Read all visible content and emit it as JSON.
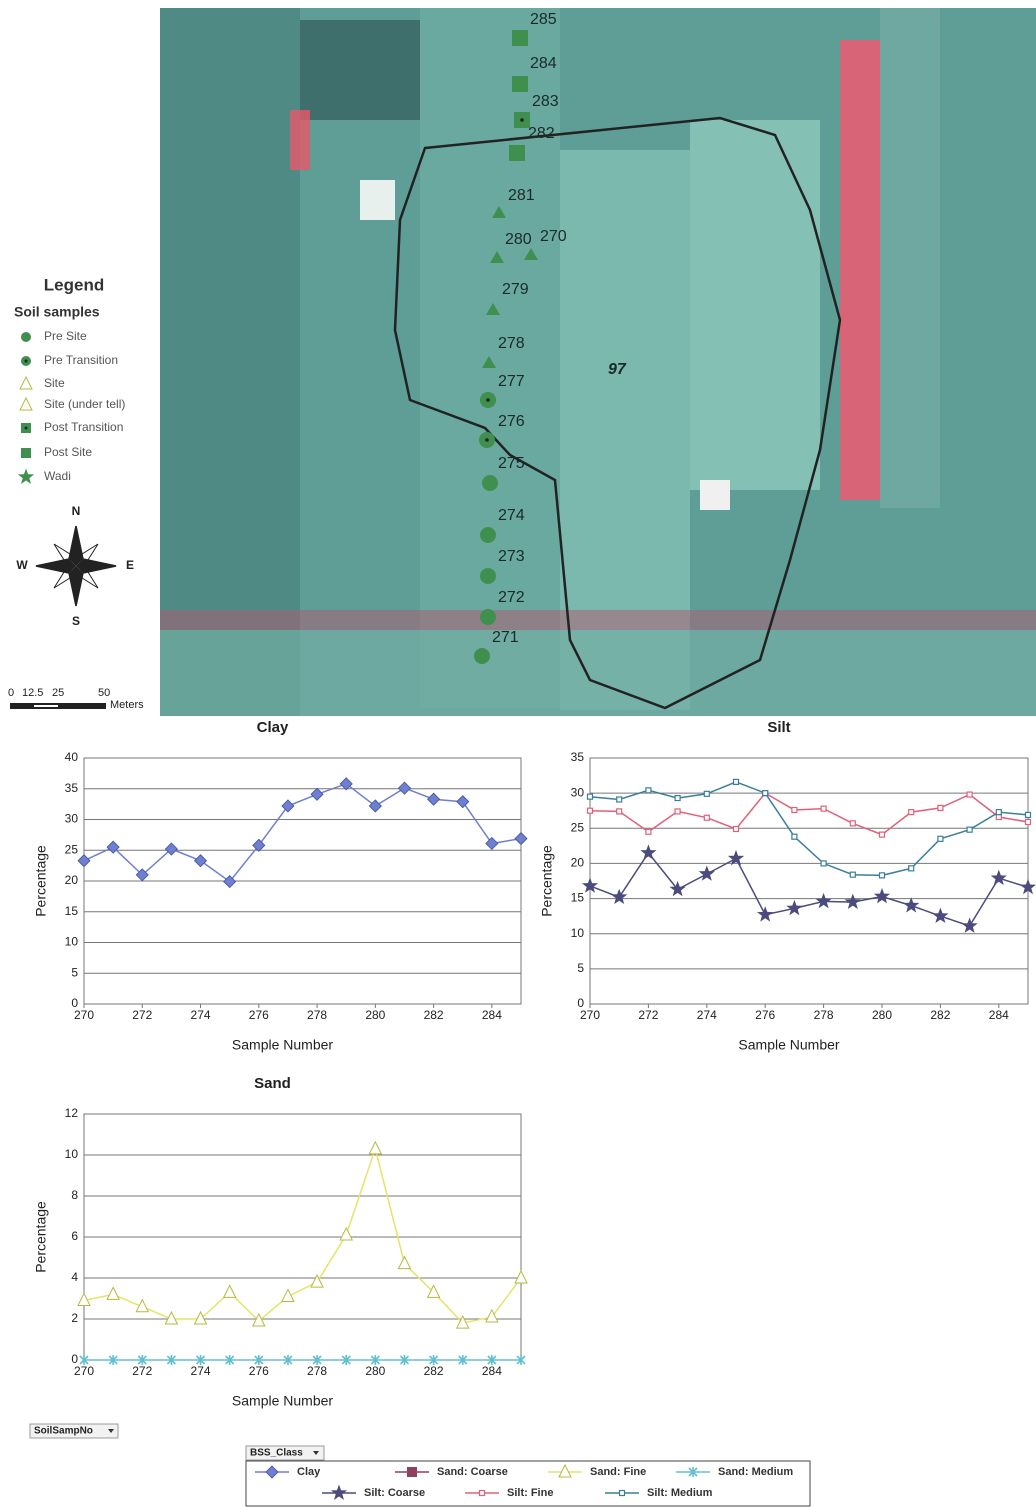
{
  "map": {
    "legend_title": "Legend",
    "legend_subtitle": "Soil samples",
    "classes": [
      {
        "name": "Pre Site",
        "marker": "circle",
        "color": "#3f8f4f"
      },
      {
        "name": "Pre Transition",
        "marker": "circle-dot",
        "color": "#3f8f4f"
      },
      {
        "name": "Site",
        "marker": "triangle",
        "color": "#3f8f4f"
      },
      {
        "name": "Site (under tell)",
        "marker": "triangle",
        "color": "#2f6f3f"
      },
      {
        "name": "Post Transition",
        "marker": "square-dot",
        "color": "#3f8f4f"
      },
      {
        "name": "Post Site",
        "marker": "square",
        "color": "#3f8f4f"
      },
      {
        "name": "Wadi",
        "marker": "star",
        "color": "#3f8f4f"
      }
    ],
    "samples": [
      "285",
      "284",
      "283",
      "282",
      "281",
      "280",
      "270",
      "279",
      "278",
      "277",
      "276",
      "275",
      "274",
      "273",
      "272",
      "271"
    ],
    "area_label": "97",
    "compass": {
      "n": "N",
      "s": "S",
      "e": "E",
      "w": "W"
    },
    "scale": {
      "ticks": [
        "0",
        "12.5",
        "25",
        "50"
      ],
      "unit": "Meters"
    }
  },
  "chart_data": [
    {
      "type": "line",
      "title": "Clay",
      "x_label": "Sample Number",
      "y_label": "Percentage",
      "x": [
        270,
        271,
        272,
        273,
        274,
        275,
        276,
        277,
        278,
        279,
        280,
        281,
        282,
        283,
        284,
        285
      ],
      "xlim": [
        270,
        285
      ],
      "xticks": [
        270,
        272,
        274,
        276,
        278,
        280,
        282,
        284
      ],
      "ylim": [
        0,
        40
      ],
      "yticks": [
        0,
        5,
        10,
        15,
        20,
        25,
        30,
        35,
        40
      ],
      "grid": true,
      "series": [
        {
          "color": "#6f7fd0",
          "marker": "diamond",
          "values": [
            23.3,
            25.5,
            21,
            25.2,
            23.3,
            19.9,
            25.8,
            32.2,
            34.1,
            35.8,
            32.2,
            35.1,
            33.3,
            32.9,
            26.1,
            26.9
          ]
        }
      ]
    },
    {
      "type": "line",
      "title": "Silt",
      "x_label": "Sample Number",
      "y_label": "Percentage",
      "x": [
        270,
        271,
        272,
        273,
        274,
        275,
        276,
        277,
        278,
        279,
        280,
        281,
        282,
        283,
        284,
        285
      ],
      "xlim": [
        270,
        285
      ],
      "xticks": [
        270,
        272,
        274,
        276,
        278,
        280,
        282,
        284
      ],
      "ylim": [
        0,
        35
      ],
      "yticks": [
        0,
        5,
        10,
        15,
        20,
        25,
        30,
        35
      ],
      "grid": true,
      "series": [
        {
          "color": "#4b4b7d",
          "marker": "star",
          "values": [
            16.8,
            15.2,
            21.5,
            16.3,
            18.5,
            20.7,
            12.7,
            13.6,
            14.6,
            14.5,
            15.3,
            14,
            12.5,
            11.1,
            17.9,
            16.6
          ]
        },
        {
          "color": "#e0607a",
          "marker": "small-square",
          "values": [
            27.5,
            27.4,
            24.5,
            27.4,
            26.5,
            24.9,
            30,
            27.6,
            27.8,
            25.7,
            24.1,
            27.3,
            27.9,
            29.8,
            26.6,
            25.9
          ]
        },
        {
          "color": "#3a7f9a",
          "marker": "small-square",
          "values": [
            29.5,
            29.1,
            30.4,
            29.3,
            29.9,
            31.6,
            30,
            23.8,
            20,
            18.4,
            18.3,
            19.3,
            23.5,
            24.8,
            27.3,
            26.9
          ]
        }
      ]
    },
    {
      "type": "line",
      "title": "Sand",
      "x_label": "Sample Number",
      "y_label": "Percentage",
      "x": [
        270,
        271,
        272,
        273,
        274,
        275,
        276,
        277,
        278,
        279,
        280,
        281,
        282,
        283,
        284,
        285
      ],
      "xlim": [
        270,
        285
      ],
      "xticks": [
        270,
        272,
        274,
        276,
        278,
        280,
        282,
        284
      ],
      "ylim": [
        0,
        12
      ],
      "yticks": [
        0,
        2,
        4,
        6,
        8,
        10,
        12
      ],
      "grid": true,
      "series": [
        {
          "color": "#e4e46a",
          "marker": "triangle",
          "values": [
            2.9,
            3.2,
            2.6,
            2,
            2,
            3.3,
            1.9,
            3.1,
            3.8,
            6.1,
            10.3,
            4.7,
            3.3,
            1.8,
            2.1,
            4
          ]
        },
        {
          "color": "#62bfd0",
          "marker": "x",
          "values": [
            0,
            0,
            0,
            0,
            0,
            0,
            0,
            0,
            0,
            0,
            0,
            0,
            0,
            0,
            0,
            0
          ]
        }
      ]
    }
  ],
  "row_field": "SoilSampNo",
  "legend": {
    "title": "BSS_Class",
    "items": [
      {
        "name": "Clay",
        "color": "#6f7fd0",
        "marker": "diamond"
      },
      {
        "name": "Sand: Coarse",
        "color": "#8f3f5f",
        "marker": "square"
      },
      {
        "name": "Sand: Fine",
        "color": "#e4e46a",
        "marker": "triangle"
      },
      {
        "name": "Sand: Medium",
        "color": "#62bfd0",
        "marker": "x"
      },
      {
        "name": "Silt: Coarse",
        "color": "#4b4b7d",
        "marker": "star"
      },
      {
        "name": "Silt: Fine",
        "color": "#e0607a",
        "marker": "small-square"
      },
      {
        "name": "Silt: Medium",
        "color": "#3a7f9a",
        "marker": "small-square"
      }
    ]
  }
}
